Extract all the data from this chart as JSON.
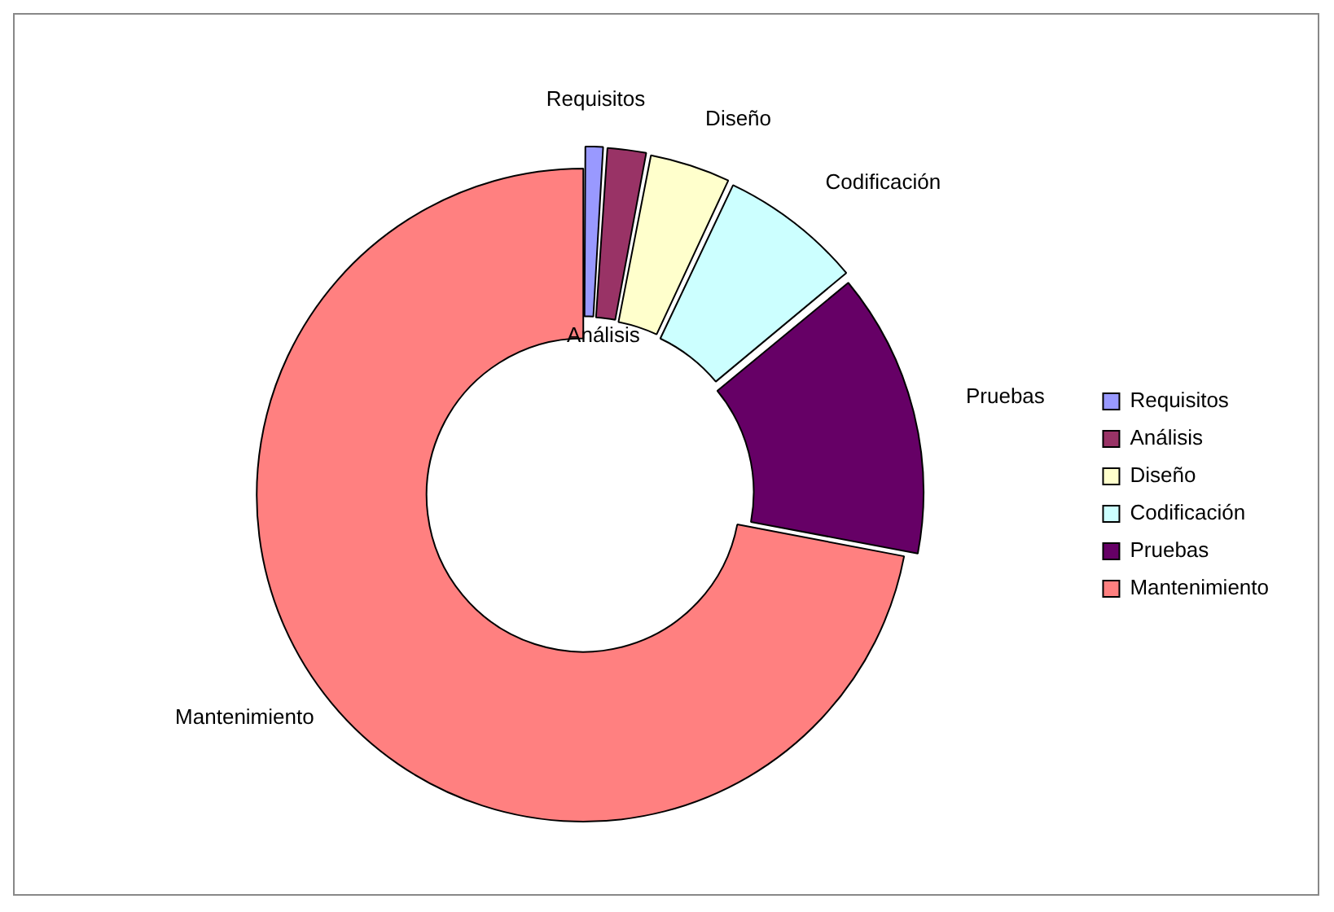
{
  "chart_data": {
    "type": "donut",
    "categories": [
      "Requisitos",
      "Análisis",
      "Diseño",
      "Codificación",
      "Pruebas",
      "Mantenimiento"
    ],
    "values": [
      1,
      2,
      4,
      7,
      14,
      72
    ],
    "colors": [
      "#9999ff",
      "#993366",
      "#ffffcc",
      "#ccffff",
      "#660066",
      "#ff8080"
    ],
    "legend": "right"
  }
}
